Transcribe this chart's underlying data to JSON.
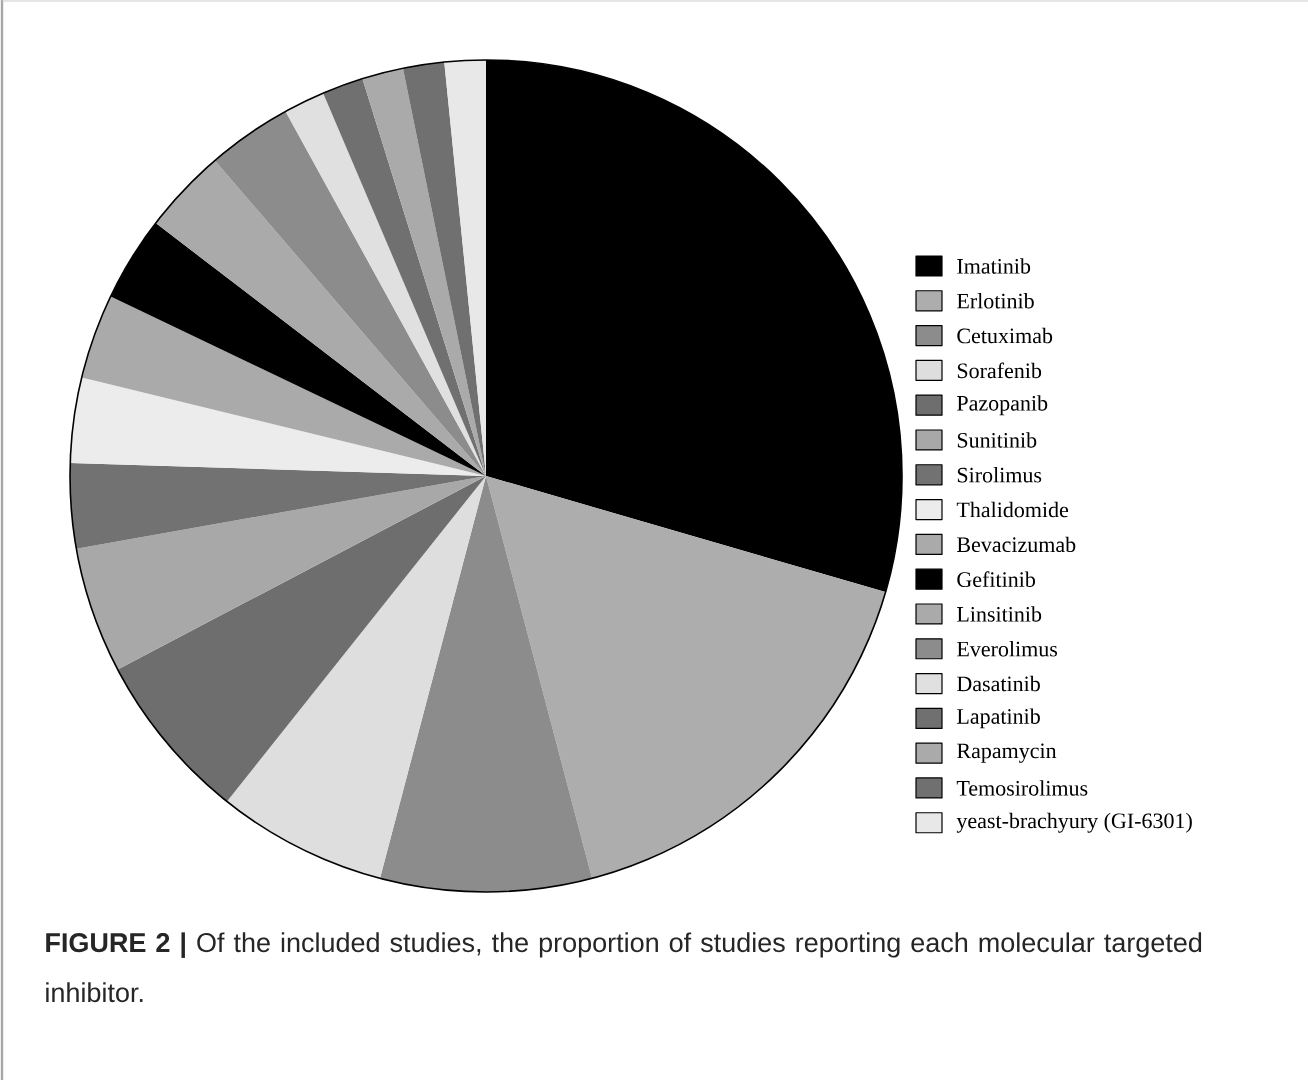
{
  "chart_data": {
    "type": "pie",
    "categories": [
      "Imatinib",
      "Erlotinib",
      "Cetuximab",
      "Sorafenib",
      "Pazopanib",
      "Sunitinib",
      "Sirolimus",
      "Thalidomide",
      "Bevacizumab",
      "Gefitinib",
      "Linsitinib",
      "Everolimus",
      "Dasatinib",
      "Lapatinib",
      "Rapamycin",
      "Temosirolimus",
      "yeast-brachyury (GI-6301)"
    ],
    "values": [
      29.5,
      16.4,
      8.2,
      6.6,
      6.6,
      4.9,
      3.3,
      3.3,
      3.3,
      3.3,
      3.3,
      3.3,
      1.6,
      1.6,
      1.6,
      1.6,
      1.6
    ],
    "colors": [
      "#000000",
      "#adadad",
      "#8c8c8c",
      "#dedede",
      "#6e6e6e",
      "#a8a8a8",
      "#727272",
      "#ececec",
      "#aaaaaa",
      "#000000",
      "#aaaaaa",
      "#8c8c8c",
      "#e0e0e0",
      "#707070",
      "#aaaaaa",
      "#707070",
      "#e8e8e8"
    ],
    "legend": "right",
    "annotations": [
      "**FIGURE 2 |** Of the included studies, the proportion of studies reporting each molecular targeted inhibitor."
    ]
  }
}
